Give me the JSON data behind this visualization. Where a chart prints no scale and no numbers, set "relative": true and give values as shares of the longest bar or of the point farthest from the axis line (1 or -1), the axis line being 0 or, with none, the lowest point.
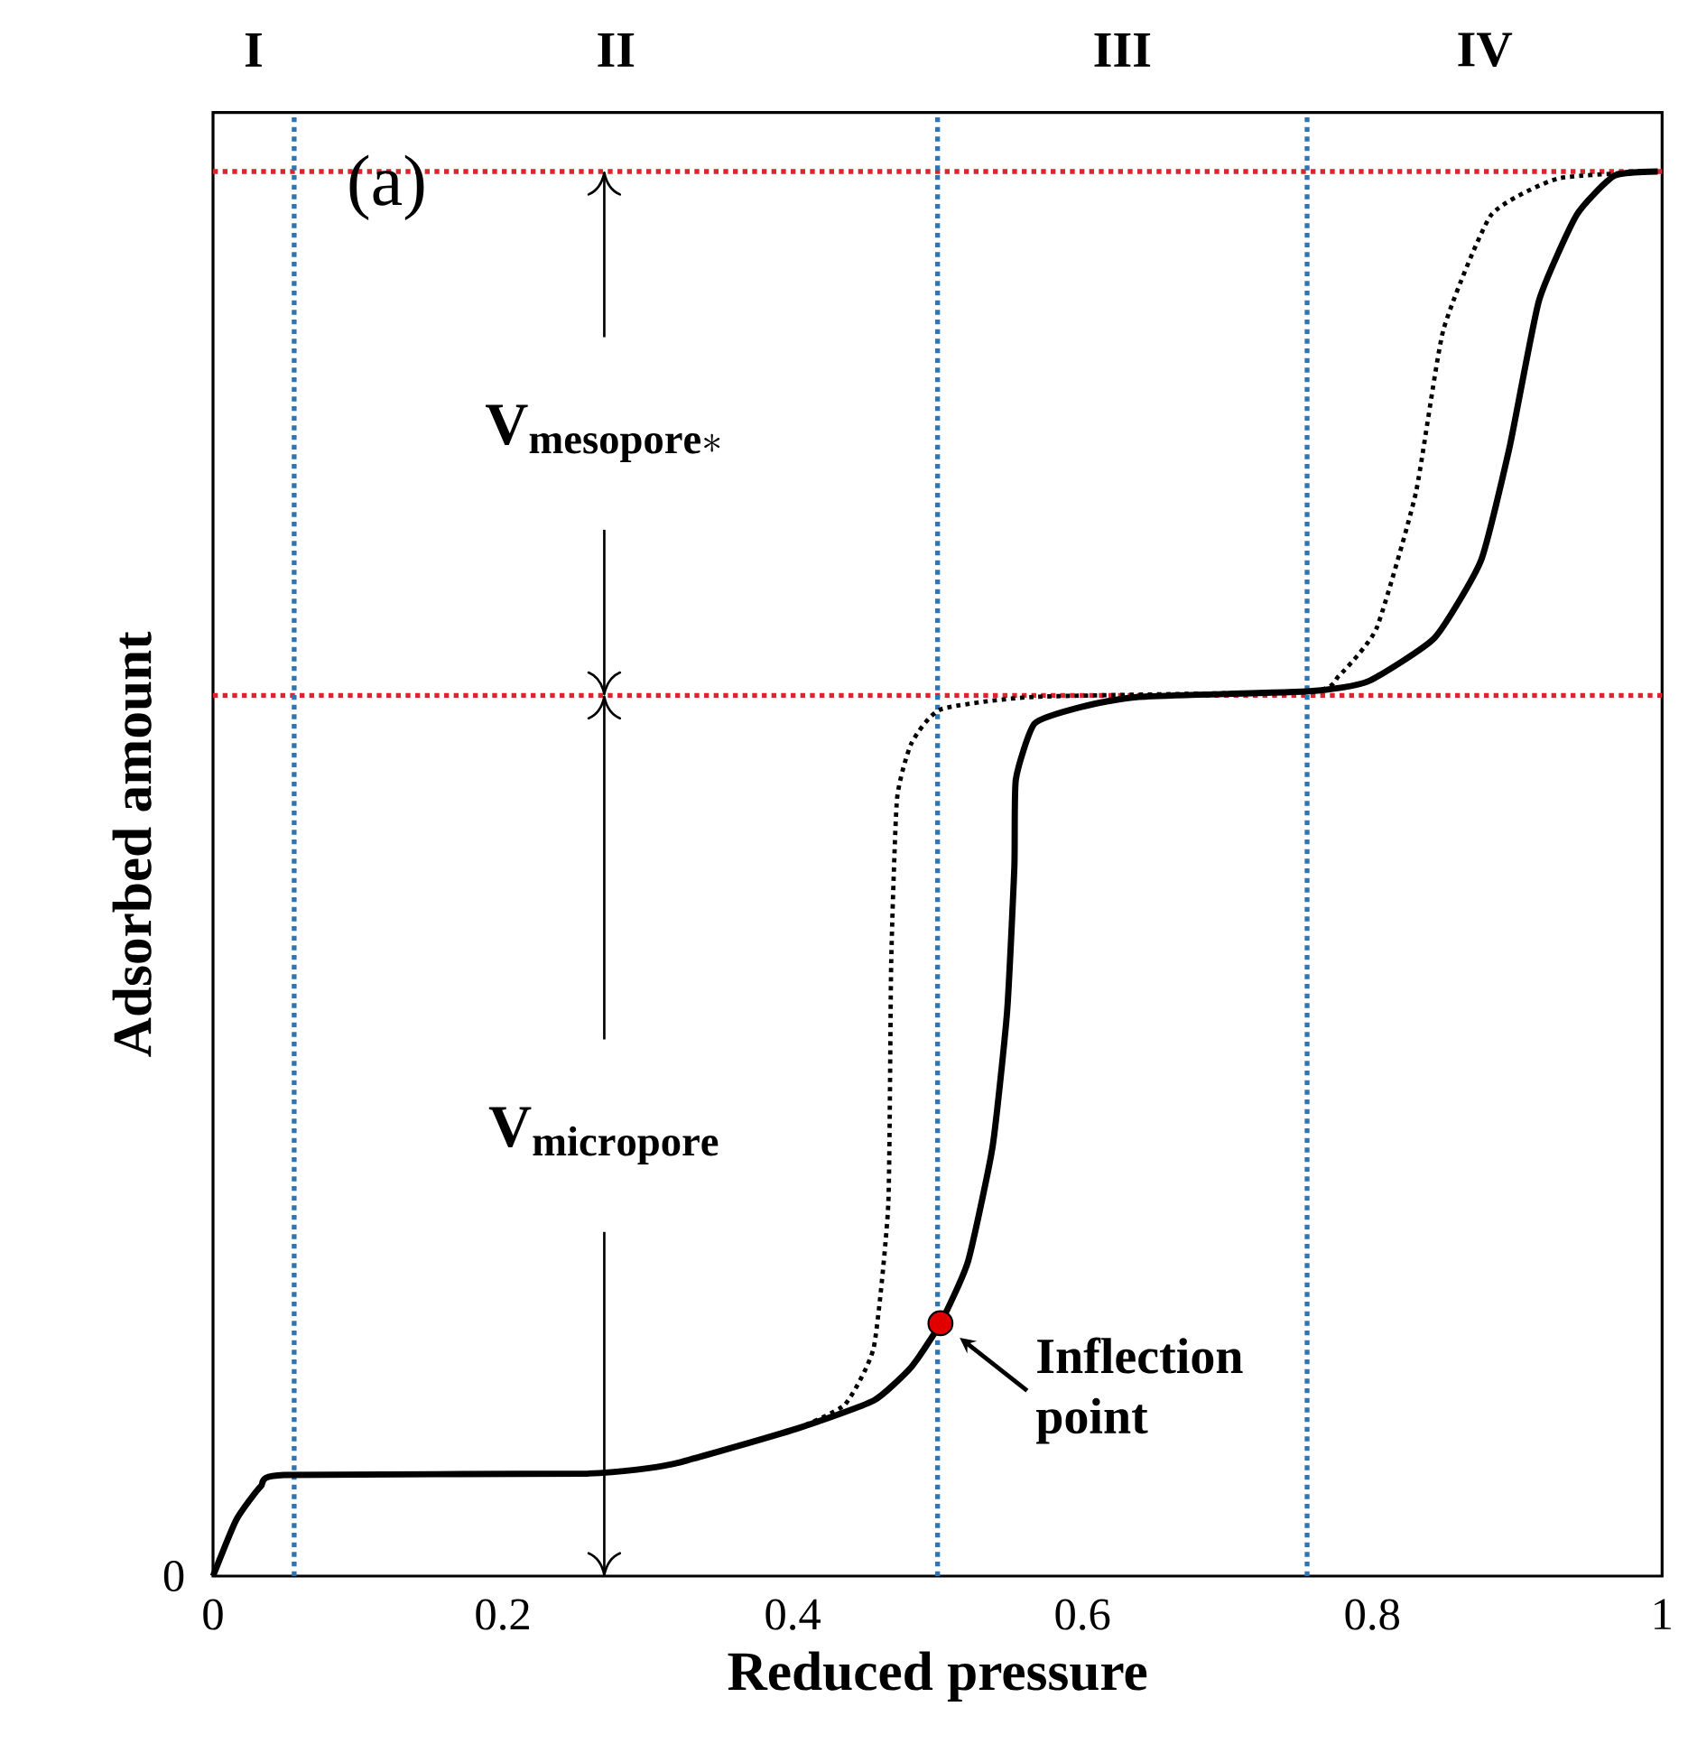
{
  "chart_data": {
    "type": "line",
    "relative": true,
    "xlabel": "Reduced pressure",
    "ylabel": "Adsorbed amount",
    "xlim": [
      0,
      1
    ],
    "xticks": [
      0,
      0.2,
      0.4,
      0.6,
      0.8,
      1
    ],
    "grid": false,
    "marker": "none",
    "series": [
      {
        "color": "#000000",
        "line_style": "solid",
        "x": [
          0,
          0.016,
          0.033,
          0.049,
          0.259,
          0.318,
          0.403,
          0.456,
          0.482,
          0.502,
          0.521,
          0.538,
          0.548,
          0.553,
          0.554,
          0.567,
          0.6,
          0.639,
          0.757,
          0.797,
          0.843,
          0.875,
          0.895,
          0.915,
          0.941,
          0.967,
          0.997
        ],
        "values": [
          0,
          0.04,
          0.064,
          0.072,
          0.073,
          0.08,
          0.105,
          0.125,
          0.149,
          0.18,
          0.224,
          0.306,
          0.402,
          0.505,
          0.567,
          0.607,
          0.619,
          0.626,
          0.63,
          0.637,
          0.668,
          0.723,
          0.805,
          0.908,
          0.969,
          0.997,
          1
        ]
      },
      {
        "color": "#000000",
        "line_style": "dotted",
        "x": [
          0.403,
          0.436,
          0.456,
          0.466,
          0.468,
          0.472,
          0.482,
          0.502,
          0.567,
          0.757,
          0.777,
          0.803,
          0.83,
          0.849,
          0.882,
          0.928,
          0.997
        ],
        "values": [
          0.105,
          0.122,
          0.163,
          0.265,
          0.437,
          0.553,
          0.593,
          0.617,
          0.626,
          0.63,
          0.641,
          0.675,
          0.771,
          0.887,
          0.969,
          0.995,
          1
        ]
      },
      {
        "type": "scatter",
        "marker": "circle",
        "color": "#e00000",
        "x": [
          0.502
        ],
        "values": [
          0.18
        ]
      }
    ],
    "ref_lines": [
      {
        "axis": "y",
        "value": 1,
        "color": "#d9262b",
        "line_style": "dotted"
      },
      {
        "axis": "y",
        "value": 0.627,
        "color": "#d9262b",
        "line_style": "dotted"
      },
      {
        "axis": "x",
        "value": 0.056,
        "color": "#2e75b6",
        "line_style": "dotted"
      },
      {
        "axis": "x",
        "value": 0.5,
        "color": "#2e75b6",
        "line_style": "dotted"
      },
      {
        "axis": "x",
        "value": 0.755,
        "color": "#2e75b6",
        "line_style": "dotted"
      }
    ],
    "annotations": [
      "I",
      "II",
      "III",
      "IV",
      "(a)",
      "0",
      "\\mathbf{V_{mesopore*}}",
      "\\mathbf{V_{micropore}}",
      {
        "text": "Inflection point",
        "x": 0.502,
        "y": 0.18
      }
    ]
  }
}
